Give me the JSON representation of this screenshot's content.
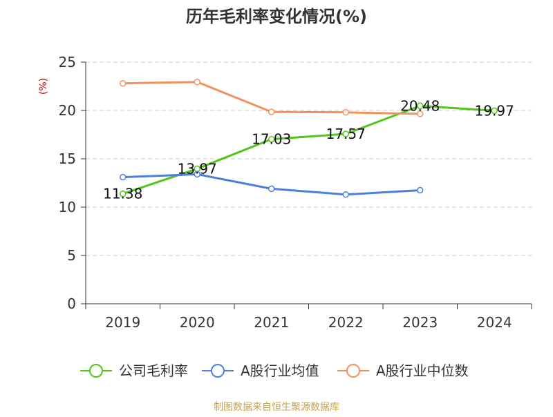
{
  "chart_data": {
    "type": "line",
    "title": "历年毛利率变化情况(%)",
    "ylabel": "(%)",
    "categories": [
      "2019",
      "2020",
      "2021",
      "2022",
      "2023",
      "2024"
    ],
    "y_ticks": [
      0,
      5,
      10,
      15,
      20,
      25
    ],
    "ylim": [
      0,
      25
    ],
    "grid": true,
    "legend_position": "bottom",
    "series": [
      {
        "name": "公司毛利率",
        "color": "#52c41a",
        "values": [
          11.38,
          13.97,
          17.03,
          17.57,
          20.48,
          19.97
        ],
        "labels": [
          "11.38",
          "13.97",
          "17.03",
          "17.57",
          "20.48",
          "19.97"
        ]
      },
      {
        "name": "A股行业均值",
        "color": "#4a7fdb",
        "values": [
          13.1,
          13.4,
          11.9,
          11.3,
          11.75,
          null
        ]
      },
      {
        "name": "A股行业中位数",
        "color": "#f2915c",
        "values": [
          22.8,
          22.95,
          19.85,
          19.8,
          19.65,
          null
        ]
      }
    ]
  },
  "footer": {
    "source_text": "制图数据来自恒生聚源数据库",
    "color": "#c8a24b"
  },
  "colors": {
    "unit_label": "#cc0000",
    "axis": "#333333",
    "grid": "#cccccc"
  }
}
